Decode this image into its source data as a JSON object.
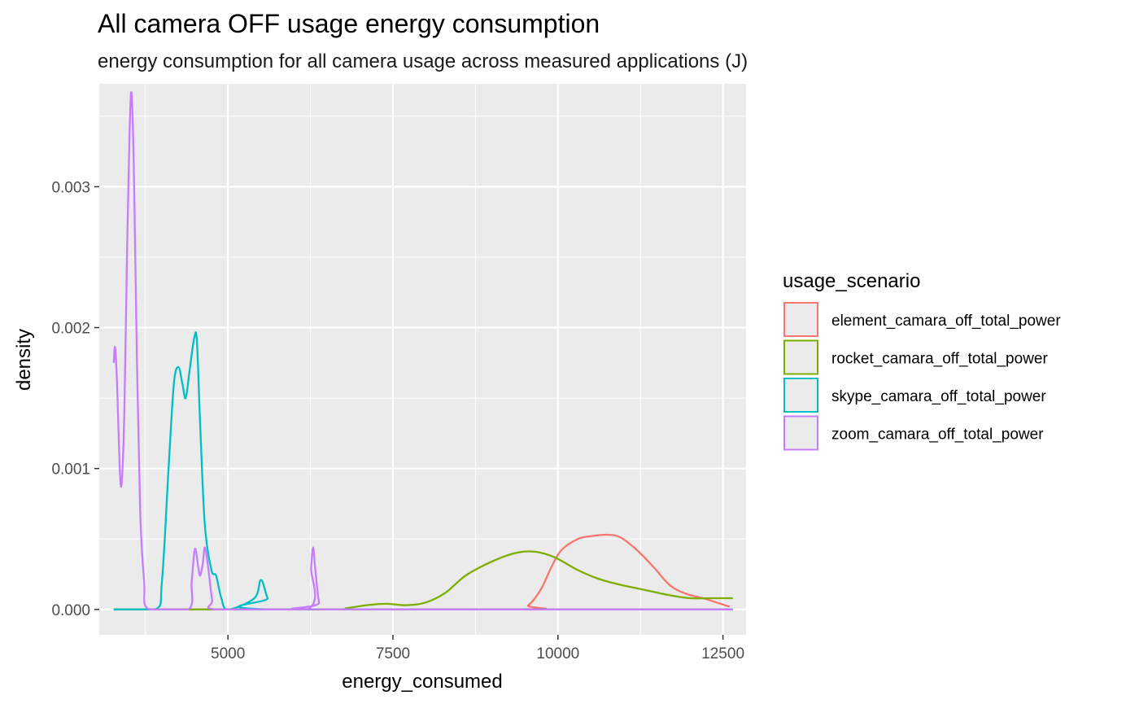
{
  "chart_data": {
    "type": "line",
    "title": "All camera OFF usage energy consumption",
    "subtitle": "energy consumption for all camera usage across measured applications (J)",
    "xlabel": "energy_consumed",
    "ylabel": "density",
    "xlim": [
      3050,
      12850
    ],
    "ylim": [
      -0.00018,
      0.00373
    ],
    "x_ticks": [
      5000,
      7500,
      10000,
      12500
    ],
    "x_tick_labels": [
      "5000",
      "7500",
      "10000",
      "12500"
    ],
    "y_ticks": [
      0,
      0.001,
      0.002,
      0.003
    ],
    "y_tick_labels": [
      "0.000",
      "0.001",
      "0.002",
      "0.003"
    ],
    "grid": true,
    "legend": {
      "title": "usage_scenario",
      "position": "right"
    },
    "series": [
      {
        "name": "element_camara_off_total_power",
        "color": "#F8766D",
        "points": [
          [
            3270,
            0
          ],
          [
            9300,
            0
          ],
          [
            9550,
            3e-05
          ],
          [
            9750,
            0.00015
          ],
          [
            9900,
            0.0003
          ],
          [
            10050,
            0.00042
          ],
          [
            10300,
            0.0005
          ],
          [
            10500,
            0.00052
          ],
          [
            10750,
            0.00053
          ],
          [
            10950,
            0.00051
          ],
          [
            11200,
            0.00042
          ],
          [
            11450,
            0.0003
          ],
          [
            11700,
            0.00017
          ],
          [
            11950,
            0.00011
          ],
          [
            12200,
            8e-05
          ],
          [
            12400,
            5e-05
          ],
          [
            12600,
            2e-05
          ]
        ]
      },
      {
        "name": "rocket_camara_off_total_power",
        "color": "#7CAE00",
        "points": [
          [
            3270,
            0
          ],
          [
            6500,
            0
          ],
          [
            6800,
            1e-05
          ],
          [
            7100,
            3e-05
          ],
          [
            7400,
            4e-05
          ],
          [
            7700,
            3e-05
          ],
          [
            8000,
            5e-05
          ],
          [
            8300,
            0.00012
          ],
          [
            8600,
            0.00024
          ],
          [
            9000,
            0.00034
          ],
          [
            9350,
            0.0004
          ],
          [
            9650,
            0.00041
          ],
          [
            9950,
            0.00037
          ],
          [
            10300,
            0.00028
          ],
          [
            10600,
            0.00022
          ],
          [
            10900,
            0.00018
          ],
          [
            11300,
            0.00014
          ],
          [
            11700,
            0.0001
          ],
          [
            12000,
            8e-05
          ],
          [
            12300,
            8e-05
          ],
          [
            12650,
            8e-05
          ]
        ]
      },
      {
        "name": "skype_camara_off_total_power",
        "color": "#00BFC4",
        "points": [
          [
            3270,
            0
          ],
          [
            3900,
            0
          ],
          [
            4000,
            0.0002
          ],
          [
            4100,
            0.001
          ],
          [
            4180,
            0.0016
          ],
          [
            4250,
            0.00172
          ],
          [
            4310,
            0.0016
          ],
          [
            4360,
            0.0015
          ],
          [
            4420,
            0.0017
          ],
          [
            4490,
            0.00193
          ],
          [
            4530,
            0.0019
          ],
          [
            4580,
            0.0013
          ],
          [
            4650,
            0.0006
          ],
          [
            4750,
            0.00028
          ],
          [
            4820,
            0.00024
          ],
          [
            4900,
            8e-05
          ],
          [
            5000,
            0
          ],
          [
            5400,
            8e-05
          ],
          [
            5500,
            0.00021
          ],
          [
            5600,
            8e-05
          ],
          [
            5700,
            0
          ],
          [
            12650,
            0
          ]
        ]
      },
      {
        "name": "zoom_camara_off_total_power",
        "color": "#C77CFF",
        "points": [
          [
            3270,
            0.00175
          ],
          [
            3290,
            0.00186
          ],
          [
            3320,
            0.0016
          ],
          [
            3360,
            0.001
          ],
          [
            3390,
            0.0009
          ],
          [
            3430,
            0.0014
          ],
          [
            3470,
            0.0025
          ],
          [
            3510,
            0.0034
          ],
          [
            3540,
            0.00366
          ],
          [
            3575,
            0.0031
          ],
          [
            3620,
            0.0018
          ],
          [
            3670,
            0.0007
          ],
          [
            3730,
            0.0002
          ],
          [
            3800,
            0
          ],
          [
            4400,
            0
          ],
          [
            4450,
            0.0002
          ],
          [
            4500,
            0.00043
          ],
          [
            4550,
            0.0003
          ],
          [
            4580,
            0.00024
          ],
          [
            4620,
            0.00033
          ],
          [
            4650,
            0.00044
          ],
          [
            4700,
            0.0003
          ],
          [
            4760,
            7e-05
          ],
          [
            4820,
            0
          ],
          [
            6200,
            0
          ],
          [
            6260,
            0.0003
          ],
          [
            6290,
            0.00044
          ],
          [
            6320,
            0.0003
          ],
          [
            6380,
            5e-05
          ],
          [
            6450,
            0
          ],
          [
            12650,
            0
          ]
        ]
      }
    ]
  }
}
